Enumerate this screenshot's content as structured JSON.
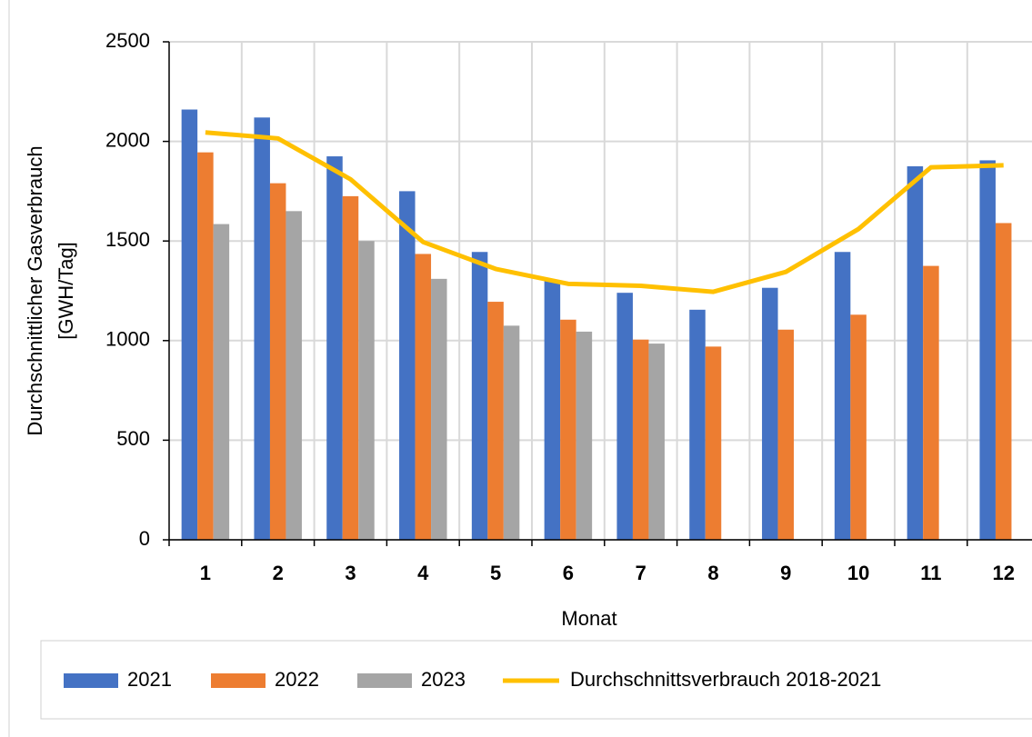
{
  "chart_data": {
    "type": "bar",
    "xlabel": "Monat",
    "ylabel": [
      "Durchschnittlicher Gasverbrauch",
      "[GWH/Tag]"
    ],
    "categories": [
      "1",
      "2",
      "3",
      "4",
      "5",
      "6",
      "7",
      "8",
      "9",
      "10",
      "11",
      "12"
    ],
    "series": [
      {
        "name": "2021",
        "color": "#4472c4",
        "values": [
          2160,
          2120,
          1925,
          1750,
          1445,
          1300,
          1240,
          1155,
          1265,
          1445,
          1875,
          1905
        ]
      },
      {
        "name": "2022",
        "color": "#ed7d31",
        "values": [
          1945,
          1790,
          1725,
          1435,
          1195,
          1105,
          1005,
          970,
          1055,
          1130,
          1375,
          1590
        ]
      },
      {
        "name": "2023",
        "color": "#a5a5a5",
        "values": [
          1585,
          1650,
          1500,
          1310,
          1075,
          1045,
          985,
          null,
          null,
          null,
          null,
          null
        ]
      },
      {
        "name": "Durchschnittsverbrauch 2018-2021",
        "color": "#ffc000",
        "type": "line",
        "values": [
          2045,
          2015,
          1810,
          1495,
          1360,
          1285,
          1275,
          1245,
          1345,
          1560,
          1870,
          1880
        ]
      }
    ],
    "ylim": [
      0,
      2500
    ],
    "yticks": [
      0,
      500,
      1000,
      1500,
      2000,
      2500
    ],
    "grid": true,
    "legend": "bottom"
  }
}
